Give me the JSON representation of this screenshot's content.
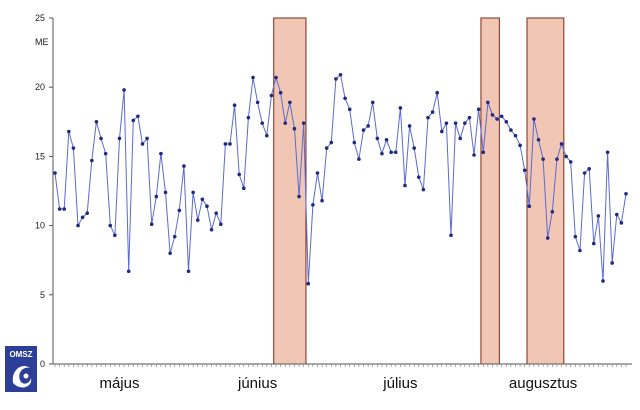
{
  "chart_data": {
    "type": "line",
    "ylabel": "ME",
    "ylim": [
      0,
      25
    ],
    "yticks": [
      0,
      5,
      10,
      15,
      20,
      25
    ],
    "grid": false,
    "month_labels": [
      "május",
      "június",
      "július",
      "augusztus"
    ],
    "series": [
      {
        "color": "#1f2a80",
        "values": [
          13.8,
          11.2,
          11.2,
          16.8,
          15.6,
          10.0,
          10.6,
          10.9,
          14.7,
          17.5,
          16.3,
          15.2,
          10.0,
          9.3,
          16.3,
          19.8,
          6.7,
          17.6,
          17.9,
          15.9,
          16.3,
          10.1,
          12.1,
          15.2,
          12.4,
          8.0,
          9.2,
          11.1,
          14.3,
          6.7,
          12.4,
          10.4,
          11.9,
          11.4,
          9.7,
          10.9,
          10.1,
          15.9,
          15.9,
          18.7,
          13.7,
          12.7,
          17.8,
          20.7,
          18.9,
          17.4,
          16.5,
          19.4,
          20.7,
          19.6,
          17.4,
          18.9,
          17.0,
          12.1,
          17.4,
          5.8,
          11.5,
          13.8,
          11.8,
          15.6,
          16.0,
          20.6,
          20.9,
          19.2,
          18.4,
          16.0,
          14.8,
          16.9,
          17.2,
          18.9,
          16.3,
          15.2,
          16.2,
          15.3,
          15.3,
          18.5,
          12.9,
          17.2,
          15.6,
          13.5,
          12.6,
          17.8,
          18.2,
          19.6,
          16.8,
          17.4,
          9.3,
          17.4,
          16.3,
          17.4,
          17.8,
          15.1,
          18.4,
          15.3,
          18.9,
          18.0,
          17.7,
          17.9,
          17.5,
          16.9,
          16.5,
          15.8,
          14.0,
          11.4,
          17.7,
          16.2,
          14.8,
          9.1,
          11.0,
          14.8,
          15.9,
          15.0,
          14.6,
          9.2,
          8.2,
          13.8,
          14.1,
          8.7,
          10.7,
          6.0,
          15.3,
          7.3,
          10.8,
          10.2,
          12.3
        ]
      }
    ],
    "highlight_ranges": [
      [
        47.5,
        54.5
      ],
      [
        92.5,
        96.5
      ],
      [
        102.5,
        110.5
      ]
    ]
  },
  "logo": {
    "text": "OMSZ"
  }
}
